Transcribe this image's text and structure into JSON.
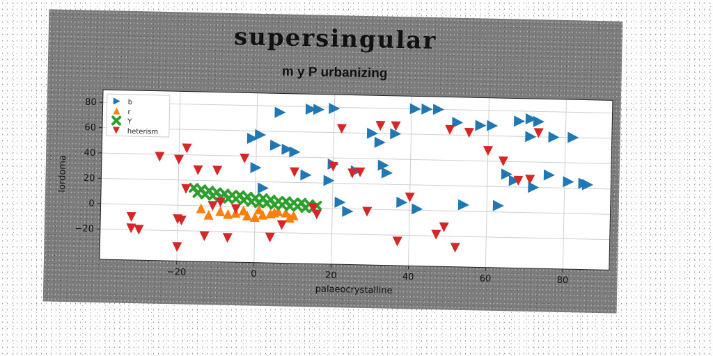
{
  "chart_data": {
    "type": "scatter",
    "title": "supersingular",
    "subtitle": "m y P urbanizing",
    "xlabel": "palaeocrystalline",
    "ylabel": "lordoma",
    "xlim": [
      -40,
      92
    ],
    "ylim": [
      -44,
      90
    ],
    "xticks": [
      -20,
      0,
      20,
      40,
      60,
      80
    ],
    "yticks": [
      -20,
      0,
      20,
      40,
      60,
      80
    ],
    "grid": true,
    "legend_position": "top-left",
    "series": [
      {
        "name": "b",
        "marker": "triangle-right",
        "color": "#1f77b4",
        "x": [
          6,
          14,
          16,
          20,
          41,
          44,
          47,
          52,
          58,
          61,
          68,
          71,
          73,
          77,
          82,
          -1,
          1,
          5,
          8,
          10,
          0,
          13,
          19,
          20,
          26,
          32,
          33,
          34,
          36,
          22,
          24,
          2,
          38,
          42,
          54,
          63,
          76,
          67,
          81,
          85,
          86,
          72,
          65,
          71,
          30
        ],
        "y": [
          75,
          78,
          78,
          79,
          80,
          80,
          80,
          70,
          68,
          68,
          72,
          74,
          72,
          60,
          60,
          54,
          57,
          49,
          46,
          44,
          31,
          26,
          22,
          35,
          30,
          53,
          35,
          29,
          60,
          5,
          -2,
          15,
          6,
          1,
          5,
          5,
          30,
          25,
          25,
          24,
          23,
          20,
          30,
          60,
          60
        ]
      },
      {
        "name": "r",
        "marker": "triangle-up",
        "color": "#ff7f0e",
        "x": [
          -14,
          -9,
          -5,
          -2,
          0,
          2,
          4,
          6,
          8,
          10,
          -12,
          -7,
          -3,
          1,
          5,
          9
        ],
        "y": [
          -2,
          -4,
          -5,
          -7,
          -8,
          -6,
          -5,
          -3,
          -4,
          -6,
          -7,
          -6,
          -3,
          -2,
          -4,
          -8
        ]
      },
      {
        "name": "Y",
        "marker": "x",
        "color": "#2ca02c",
        "x": [
          -16,
          -14,
          -12,
          -10,
          -8,
          -6,
          -4,
          -2,
          0,
          2,
          4,
          6,
          8,
          10,
          12,
          14,
          16,
          -15,
          -13,
          -11,
          -9,
          -7,
          -5,
          -3,
          -1,
          1,
          3,
          5,
          7,
          9,
          11,
          13,
          15
        ],
        "y": [
          14,
          13,
          12,
          11,
          10,
          9,
          9,
          8,
          7,
          7,
          6,
          5,
          5,
          4,
          4,
          3,
          2,
          10,
          9,
          8,
          7,
          6,
          6,
          5,
          4,
          3,
          3,
          2,
          2,
          1,
          1,
          0,
          0
        ]
      },
      {
        "name": "heterism",
        "marker": "triangle-down",
        "color": "#d62728",
        "x": [
          -25,
          -20,
          -18,
          -15,
          -10,
          -3,
          -18,
          -19,
          -32,
          -20,
          -32,
          -30,
          -20,
          -13,
          -7,
          -9,
          -11,
          10,
          -5,
          7,
          4,
          22,
          20,
          25,
          27,
          29,
          32,
          36,
          40,
          47,
          49,
          52,
          50,
          55,
          60,
          64,
          68,
          71,
          73,
          37,
          16,
          15
        ],
        "y": [
          38,
          36,
          45,
          28,
          28,
          38,
          13,
          -12,
          -10,
          -11,
          -19,
          -20,
          -33,
          -24,
          -25,
          3,
          0,
          28,
          -2,
          -14,
          -24,
          63,
          33,
          28,
          29,
          -2,
          66,
          66,
          10,
          -19,
          -13,
          -29,
          64,
          62,
          48,
          40,
          25,
          26,
          63,
          -25,
          -5,
          0
        ]
      }
    ]
  }
}
